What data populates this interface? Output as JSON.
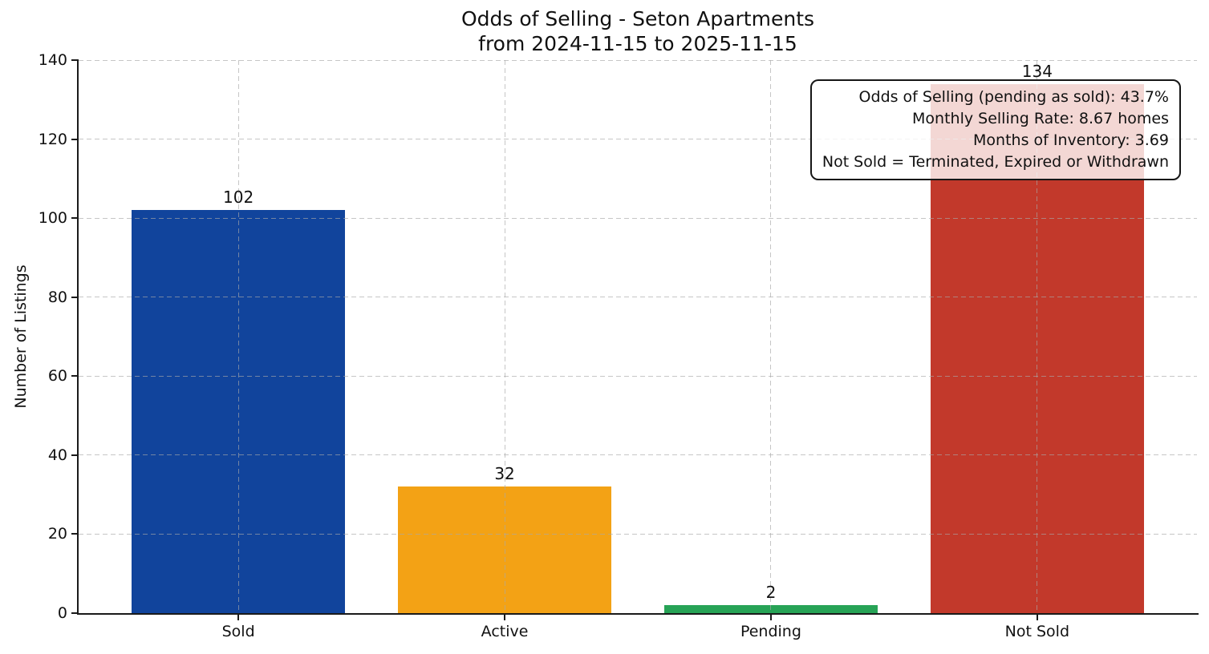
{
  "figure": {
    "title_line1": "Odds of Selling - Seton Apartments",
    "title_line2": "from 2024-11-15 to 2025-11-15",
    "ylabel": "Number of Listings"
  },
  "chart_data": {
    "type": "bar",
    "title": "Odds of Selling - Seton Apartments\nfrom 2024-11-15 to 2025-11-15",
    "xlabel": "",
    "ylabel": "Number of Listings",
    "categories": [
      "Sold",
      "Active",
      "Pending",
      "Not Sold"
    ],
    "values": [
      102,
      32,
      2,
      134
    ],
    "bar_colors": [
      "#11449c",
      "#f3a215",
      "#27a356",
      "#c2392b"
    ],
    "ylim": [
      0,
      140
    ],
    "yticks": [
      0,
      20,
      40,
      60,
      80,
      100,
      120,
      140
    ],
    "grid": {
      "style": "dashed",
      "horizontal": true,
      "vertical": true,
      "on_top_of_bars": true
    },
    "legend": "none",
    "annotation": {
      "position": "top-right",
      "align": "right",
      "lines": [
        "Odds of Selling (pending as sold): 43.7%",
        "Monthly Selling Rate: 8.67 homes",
        "Months of Inventory: 3.69",
        "Not Sold = Terminated, Expired or Withdrawn"
      ]
    }
  }
}
